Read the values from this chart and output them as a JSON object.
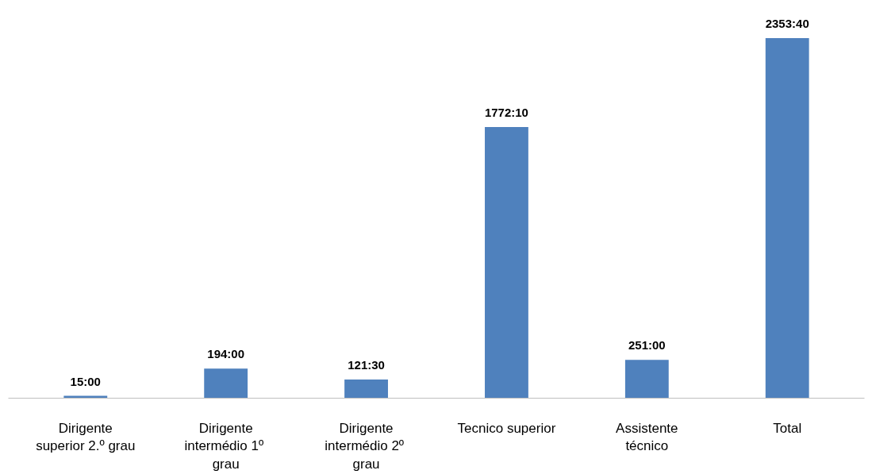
{
  "chart_data": {
    "type": "bar",
    "categories": [
      "Dirigente superior 2.º grau",
      "Dirigente intermédio  1º grau",
      "Dirigente intermédio  2º grau",
      "Tecnico superior",
      "Assistente técnico",
      "Total"
    ],
    "values": [
      15,
      194,
      121.5,
      1772.17,
      251,
      2353.67
    ],
    "value_labels": [
      "15:00",
      "194:00",
      "121:30",
      "1772:10",
      "251:00",
      "2353:40"
    ],
    "color": "#4f81bd"
  }
}
